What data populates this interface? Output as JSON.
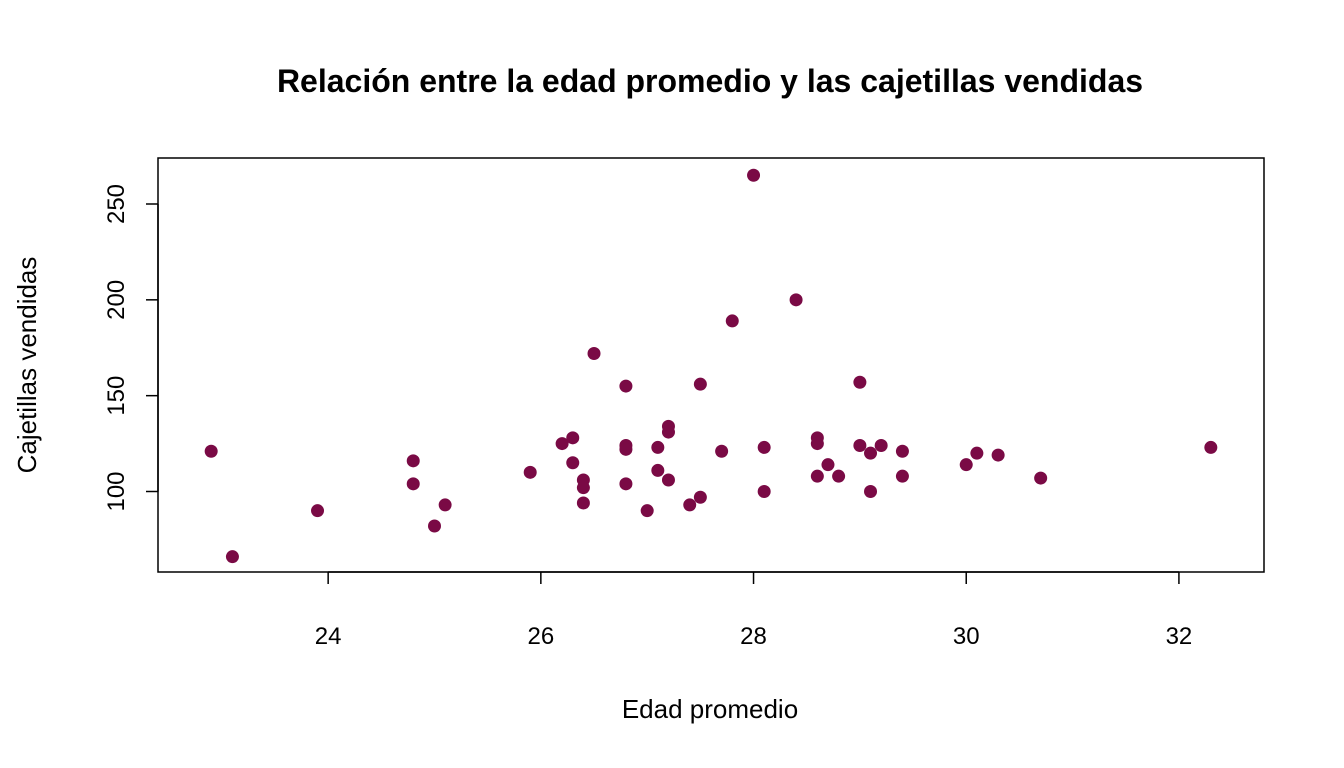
{
  "chart_data": {
    "type": "scatter",
    "title": "Relación entre la edad promedio y las cajetillas vendidas",
    "xlabel": "Edad promedio",
    "ylabel": "Cajetillas vendidas",
    "xlim": [
      22.4,
      32.8
    ],
    "ylim": [
      58,
      274
    ],
    "xticks": [
      "24",
      "26",
      "28",
      "30",
      "32"
    ],
    "yticks": [
      "100",
      "150",
      "200",
      "250"
    ],
    "grid": false,
    "legend": "none",
    "point_color": "#7a0a45",
    "points": [
      [
        22.9,
        121
      ],
      [
        23.1,
        66
      ],
      [
        23.9,
        90
      ],
      [
        24.8,
        116
      ],
      [
        24.8,
        104
      ],
      [
        25.0,
        82
      ],
      [
        25.1,
        93
      ],
      [
        25.9,
        110
      ],
      [
        26.2,
        125
      ],
      [
        26.3,
        128
      ],
      [
        26.3,
        115
      ],
      [
        26.4,
        106
      ],
      [
        26.4,
        102
      ],
      [
        26.4,
        94
      ],
      [
        26.5,
        172
      ],
      [
        26.8,
        155
      ],
      [
        26.8,
        124
      ],
      [
        26.8,
        122
      ],
      [
        26.8,
        104
      ],
      [
        27.0,
        90
      ],
      [
        27.1,
        123
      ],
      [
        27.1,
        111
      ],
      [
        27.2,
        134
      ],
      [
        27.2,
        131
      ],
      [
        27.2,
        106
      ],
      [
        27.4,
        93
      ],
      [
        27.5,
        156
      ],
      [
        27.5,
        97
      ],
      [
        27.7,
        121
      ],
      [
        27.8,
        189
      ],
      [
        28.0,
        265
      ],
      [
        28.1,
        123
      ],
      [
        28.1,
        100
      ],
      [
        28.4,
        200
      ],
      [
        28.6,
        128
      ],
      [
        28.6,
        125
      ],
      [
        28.6,
        108
      ],
      [
        28.7,
        114
      ],
      [
        28.8,
        108
      ],
      [
        29.0,
        157
      ],
      [
        29.0,
        124
      ],
      [
        29.1,
        120
      ],
      [
        29.1,
        100
      ],
      [
        29.2,
        124
      ],
      [
        29.4,
        121
      ],
      [
        29.4,
        108
      ],
      [
        30.0,
        114
      ],
      [
        30.1,
        120
      ],
      [
        30.3,
        119
      ],
      [
        30.7,
        107
      ],
      [
        32.3,
        123
      ]
    ]
  }
}
